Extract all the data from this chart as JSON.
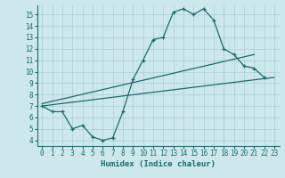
{
  "title": "",
  "xlabel": "Humidex (Indice chaleur)",
  "ylabel": "",
  "bg_color": "#cce8ec",
  "grid_color": "#aacdd2",
  "line_color": "#1a6b6b",
  "xlim": [
    -0.5,
    23.5
  ],
  "ylim": [
    3.5,
    15.8
  ],
  "xticks": [
    0,
    1,
    2,
    3,
    4,
    5,
    6,
    7,
    8,
    9,
    10,
    11,
    12,
    13,
    14,
    15,
    16,
    17,
    18,
    19,
    20,
    21,
    22,
    23
  ],
  "yticks": [
    4,
    5,
    6,
    7,
    8,
    9,
    10,
    11,
    12,
    13,
    14,
    15
  ],
  "curve1_x": [
    0,
    1,
    2,
    3,
    4,
    5,
    6,
    7,
    8,
    9,
    10,
    11,
    12,
    13,
    14,
    15,
    16,
    17,
    18,
    19,
    20,
    21,
    22
  ],
  "curve1_y": [
    7.0,
    6.5,
    6.5,
    5.0,
    5.3,
    4.3,
    4.0,
    4.2,
    6.5,
    9.3,
    11.0,
    12.8,
    13.0,
    15.2,
    15.5,
    15.0,
    15.5,
    14.5,
    12.0,
    11.5,
    10.5,
    10.3,
    9.5
  ],
  "curve2_x": [
    0,
    23
  ],
  "curve2_y": [
    7.0,
    9.5
  ],
  "curve3_x": [
    0,
    21
  ],
  "curve3_y": [
    7.2,
    11.5
  ],
  "font_family": "monospace"
}
